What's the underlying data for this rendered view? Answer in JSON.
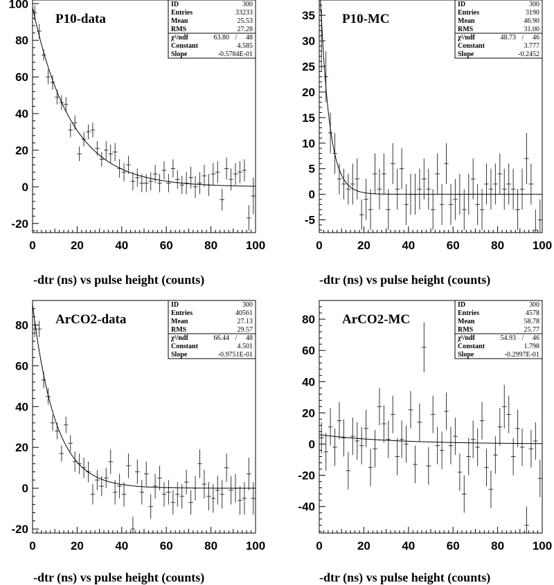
{
  "chart_data": [
    {
      "type": "scatter",
      "title": "P10-data",
      "xlabel": "-dtr (ns) vs pulse height (counts)",
      "xlim": [
        0,
        100
      ],
      "ylim": [
        -25,
        102
      ],
      "xticks": [
        0,
        20,
        40,
        60,
        80,
        100
      ],
      "yticks": [
        -20,
        0,
        20,
        40,
        60,
        80,
        100
      ],
      "stats": {
        "ID": "300",
        "Entries": "33233",
        "Mean": "25.53",
        "RMS": "27.28",
        "chi2_value": "63.80",
        "ndf": "48",
        "Constant": "4.585",
        "Slope": "-0.5784E-01"
      },
      "stat_labels": {
        "id": "ID",
        "entries": "Entries",
        "mean": "Mean",
        "rms": "RMS",
        "chi2": "χ²/ndf",
        "constant": "Constant",
        "slope": "Slope"
      },
      "fit": {
        "constant": 4.585,
        "slope": -0.05784
      },
      "points": [
        [
          1,
          95,
          4
        ],
        [
          3,
          85,
          4
        ],
        [
          5,
          72,
          3
        ],
        [
          7,
          60,
          4
        ],
        [
          9,
          57,
          4
        ],
        [
          11,
          49,
          4
        ],
        [
          13,
          46,
          4
        ],
        [
          15,
          45,
          4
        ],
        [
          17,
          31,
          4
        ],
        [
          19,
          35,
          4
        ],
        [
          21,
          18,
          4
        ],
        [
          23,
          26,
          4
        ],
        [
          25,
          30,
          4
        ],
        [
          27,
          31,
          4
        ],
        [
          29,
          21,
          4
        ],
        [
          31,
          15,
          4
        ],
        [
          33,
          20,
          5
        ],
        [
          35,
          18,
          5
        ],
        [
          37,
          19,
          5
        ],
        [
          39,
          10,
          5
        ],
        [
          41,
          8,
          5
        ],
        [
          43,
          12,
          5
        ],
        [
          45,
          3,
          5
        ],
        [
          47,
          5,
          5
        ],
        [
          49,
          2,
          5
        ],
        [
          51,
          2,
          5
        ],
        [
          53,
          3,
          5
        ],
        [
          55,
          7,
          5
        ],
        [
          57,
          2,
          5
        ],
        [
          59,
          9,
          5
        ],
        [
          61,
          2,
          5
        ],
        [
          63,
          10,
          5
        ],
        [
          65,
          4,
          5
        ],
        [
          67,
          1,
          5
        ],
        [
          69,
          2,
          6
        ],
        [
          71,
          5,
          6
        ],
        [
          73,
          0,
          6
        ],
        [
          75,
          2,
          6
        ],
        [
          77,
          6,
          6
        ],
        [
          79,
          1,
          6
        ],
        [
          81,
          7,
          6
        ],
        [
          83,
          8,
          6
        ],
        [
          85,
          -7,
          6
        ],
        [
          87,
          10,
          6
        ],
        [
          89,
          4,
          6
        ],
        [
          91,
          7,
          6
        ],
        [
          93,
          8,
          6
        ],
        [
          95,
          9,
          6
        ],
        [
          97,
          -17,
          7
        ],
        [
          99,
          -5,
          10
        ]
      ]
    },
    {
      "type": "scatter",
      "title": "P10-MC",
      "xlabel": "-dtr (ns) vs pulse height (counts)",
      "xlim": [
        0,
        100
      ],
      "ylim": [
        -7.5,
        38
      ],
      "xticks": [
        0,
        20,
        40,
        60,
        80,
        100
      ],
      "yticks": [
        -5,
        0,
        5,
        10,
        15,
        20,
        25,
        30,
        35
      ],
      "stats": {
        "ID": "300",
        "Entries": "3190",
        "Mean": "46.90",
        "RMS": "31.00",
        "chi2_value": "48.73",
        "ndf": "46",
        "Constant": "3.777",
        "Slope": "-0.2452"
      },
      "stat_labels": {
        "id": "ID",
        "entries": "Entries",
        "mean": "Mean",
        "rms": "RMS",
        "chi2": "χ²/ndf",
        "constant": "Constant",
        "slope": "Slope"
      },
      "fit": {
        "constant": 3.777,
        "slope": -0.2452
      },
      "points": [
        [
          1,
          30,
          6
        ],
        [
          3,
          23,
          5
        ],
        [
          5,
          12,
          4
        ],
        [
          7,
          8,
          4
        ],
        [
          9,
          3,
          3
        ],
        [
          11,
          2,
          3
        ],
        [
          13,
          1,
          3
        ],
        [
          15,
          2,
          4
        ],
        [
          17,
          3,
          4
        ],
        [
          19,
          -4,
          3
        ],
        [
          21,
          -1,
          4
        ],
        [
          23,
          -3,
          4
        ],
        [
          25,
          4,
          4
        ],
        [
          27,
          1,
          4
        ],
        [
          29,
          4,
          4
        ],
        [
          31,
          -3,
          4
        ],
        [
          33,
          6,
          4
        ],
        [
          35,
          1,
          4
        ],
        [
          37,
          5,
          4
        ],
        [
          39,
          -2,
          4
        ],
        [
          41,
          0,
          4
        ],
        [
          43,
          0,
          4
        ],
        [
          45,
          1,
          4
        ],
        [
          47,
          3,
          4
        ],
        [
          49,
          1,
          4
        ],
        [
          51,
          -3,
          4
        ],
        [
          53,
          4,
          4
        ],
        [
          55,
          -2,
          4
        ],
        [
          57,
          6,
          4
        ],
        [
          59,
          -2,
          4
        ],
        [
          61,
          -1,
          4
        ],
        [
          63,
          0,
          4
        ],
        [
          65,
          -3,
          4
        ],
        [
          67,
          0,
          4
        ],
        [
          69,
          3,
          4
        ],
        [
          71,
          -2,
          4
        ],
        [
          73,
          -3,
          4
        ],
        [
          75,
          2,
          4
        ],
        [
          77,
          1,
          4
        ],
        [
          79,
          2,
          4
        ],
        [
          81,
          4,
          4
        ],
        [
          83,
          1,
          4
        ],
        [
          85,
          2,
          4
        ],
        [
          87,
          1,
          4
        ],
        [
          89,
          -3,
          4
        ],
        [
          91,
          1,
          4
        ],
        [
          93,
          7,
          5
        ],
        [
          95,
          2,
          4
        ],
        [
          97,
          -7,
          4
        ],
        [
          99,
          -5,
          4
        ]
      ]
    },
    {
      "type": "scatter",
      "title": "ArCO2-data",
      "xlabel": "-dtr (ns) vs pulse height (counts)",
      "xlim": [
        0,
        100
      ],
      "ylim": [
        -22,
        92
      ],
      "xticks": [
        0,
        20,
        40,
        60,
        80,
        100
      ],
      "yticks": [
        -20,
        0,
        20,
        40,
        60,
        80
      ],
      "stats": {
        "ID": "300",
        "Entries": "40561",
        "Mean": "27.13",
        "RMS": "29.57",
        "chi2_value": "66.44",
        "ndf": "48",
        "Constant": "4.501",
        "Slope": "-0.9751E-01"
      },
      "stat_labels": {
        "id": "ID",
        "entries": "Entries",
        "mean": "Mean",
        "rms": "RMS",
        "chi2": "χ²/ndf",
        "constant": "Constant",
        "slope": "Slope"
      },
      "fit": {
        "constant": 4.501,
        "slope": -0.09751
      },
      "points": [
        [
          1,
          78,
          4
        ],
        [
          3,
          78,
          4
        ],
        [
          5,
          53,
          4
        ],
        [
          7,
          45,
          4
        ],
        [
          9,
          32,
          4
        ],
        [
          11,
          28,
          4
        ],
        [
          13,
          17,
          4
        ],
        [
          15,
          31,
          4
        ],
        [
          17,
          22,
          4
        ],
        [
          19,
          13,
          5
        ],
        [
          21,
          12,
          5
        ],
        [
          23,
          10,
          5
        ],
        [
          25,
          8,
          5
        ],
        [
          27,
          -3,
          5
        ],
        [
          29,
          4,
          5
        ],
        [
          31,
          1,
          5
        ],
        [
          33,
          5,
          5
        ],
        [
          35,
          13,
          6
        ],
        [
          37,
          -2,
          6
        ],
        [
          39,
          1,
          6
        ],
        [
          41,
          -3,
          6
        ],
        [
          43,
          11,
          6
        ],
        [
          45,
          -20,
          6
        ],
        [
          47,
          8,
          6
        ],
        [
          49,
          -2,
          6
        ],
        [
          51,
          7,
          6
        ],
        [
          53,
          -9,
          6
        ],
        [
          55,
          1,
          6
        ],
        [
          57,
          5,
          6
        ],
        [
          59,
          -3,
          6
        ],
        [
          61,
          -2,
          6
        ],
        [
          63,
          -7,
          6
        ],
        [
          65,
          -3,
          6
        ],
        [
          67,
          -4,
          6
        ],
        [
          69,
          3,
          6
        ],
        [
          71,
          -7,
          6
        ],
        [
          73,
          0,
          6
        ],
        [
          75,
          12,
          7
        ],
        [
          77,
          2,
          7
        ],
        [
          79,
          -4,
          7
        ],
        [
          81,
          -5,
          7
        ],
        [
          83,
          -1,
          7
        ],
        [
          85,
          -3,
          7
        ],
        [
          87,
          10,
          7
        ],
        [
          89,
          -1,
          7
        ],
        [
          91,
          0,
          7
        ],
        [
          93,
          -6,
          7
        ],
        [
          95,
          -5,
          8
        ],
        [
          97,
          7,
          8
        ],
        [
          99,
          -5,
          8
        ]
      ]
    },
    {
      "type": "scatter",
      "title": "ArCO2-MC",
      "xlabel": "-dtr (ns) vs pulse height (counts)",
      "xlim": [
        0,
        100
      ],
      "ylim": [
        -57,
        92
      ],
      "xticks": [
        0,
        20,
        40,
        60,
        80,
        100
      ],
      "yticks": [
        -40,
        -20,
        0,
        20,
        40,
        60,
        80
      ],
      "stats": {
        "ID": "300",
        "Entries": "4578",
        "Mean": "58.78",
        "RMS": "25.77",
        "chi2_value": "54.93",
        "ndf": "46",
        "Constant": "1.798",
        "Slope": "-0.2997E-01"
      },
      "stat_labels": {
        "id": "ID",
        "entries": "Entries",
        "mean": "Mean",
        "rms": "RMS",
        "chi2": "χ²/ndf",
        "constant": "Constant",
        "slope": "Slope"
      },
      "fit": {
        "constant": 1.798,
        "slope": -0.02997
      },
      "points": [
        [
          1,
          4,
          10
        ],
        [
          3,
          -5,
          12
        ],
        [
          5,
          11,
          12
        ],
        [
          7,
          -2,
          12
        ],
        [
          9,
          15,
          12
        ],
        [
          11,
          4,
          12
        ],
        [
          13,
          -17,
          12
        ],
        [
          15,
          5,
          12
        ],
        [
          17,
          2,
          12
        ],
        [
          19,
          -1,
          12
        ],
        [
          21,
          10,
          12
        ],
        [
          23,
          -15,
          12
        ],
        [
          25,
          -3,
          12
        ],
        [
          27,
          24,
          12
        ],
        [
          29,
          13,
          12
        ],
        [
          31,
          3,
          12
        ],
        [
          33,
          19,
          12
        ],
        [
          35,
          -8,
          12
        ],
        [
          37,
          3,
          12
        ],
        [
          39,
          0,
          12
        ],
        [
          41,
          22,
          12
        ],
        [
          43,
          -13,
          12
        ],
        [
          45,
          14,
          12
        ],
        [
          47,
          62,
          16
        ],
        [
          49,
          -14,
          12
        ],
        [
          51,
          19,
          12
        ],
        [
          53,
          -1,
          12
        ],
        [
          55,
          -4,
          12
        ],
        [
          57,
          21,
          12
        ],
        [
          59,
          -1,
          12
        ],
        [
          61,
          5,
          12
        ],
        [
          63,
          -18,
          12
        ],
        [
          65,
          -32,
          12
        ],
        [
          67,
          -8,
          12
        ],
        [
          69,
          3,
          12
        ],
        [
          71,
          -2,
          12
        ],
        [
          73,
          15,
          12
        ],
        [
          75,
          -15,
          12
        ],
        [
          77,
          -29,
          12
        ],
        [
          79,
          -7,
          12
        ],
        [
          81,
          11,
          12
        ],
        [
          83,
          24,
          14
        ],
        [
          85,
          19,
          12
        ],
        [
          87,
          -8,
          12
        ],
        [
          89,
          10,
          12
        ],
        [
          91,
          -2,
          12
        ],
        [
          93,
          -52,
          12
        ],
        [
          95,
          -3,
          12
        ],
        [
          97,
          2,
          12
        ],
        [
          99,
          -22,
          12
        ]
      ]
    }
  ]
}
